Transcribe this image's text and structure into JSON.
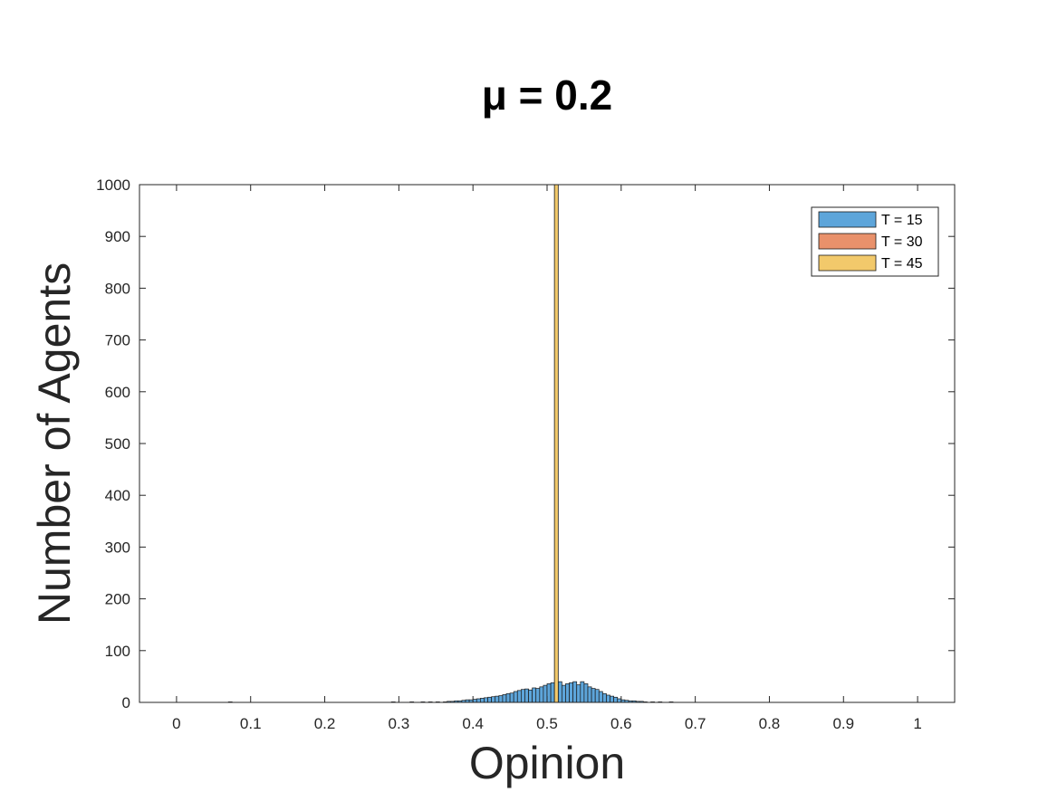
{
  "chart_data": {
    "type": "bar",
    "title": "μ = 0.2",
    "xlabel": "Opinion",
    "ylabel": "Number of Agents",
    "xlim": [
      -0.05,
      1.05
    ],
    "ylim": [
      0,
      1000
    ],
    "xticks": [
      0,
      0.1,
      0.2,
      0.3,
      0.4,
      0.5,
      0.6,
      0.7,
      0.8,
      0.9,
      1
    ],
    "xtick_labels": [
      "0",
      "0.1",
      "0.2",
      "0.3",
      "0.4",
      "0.5",
      "0.6",
      "0.7",
      "0.8",
      "0.9",
      "1"
    ],
    "yticks": [
      0,
      100,
      200,
      300,
      400,
      500,
      600,
      700,
      800,
      900,
      1000
    ],
    "ytick_labels": [
      "0",
      "100",
      "200",
      "300",
      "400",
      "500",
      "600",
      "700",
      "800",
      "900",
      "1000"
    ],
    "bin_width": 0.005,
    "grid": false,
    "legend_position": "top-right",
    "series": [
      {
        "name": "T = 15",
        "color": "#5DA5DA",
        "bins": [
          [
            0.07,
            1
          ],
          [
            0.29,
            1
          ],
          [
            0.315,
            1
          ],
          [
            0.33,
            1
          ],
          [
            0.34,
            1
          ],
          [
            0.35,
            1
          ],
          [
            0.36,
            1
          ],
          [
            0.365,
            2
          ],
          [
            0.37,
            2
          ],
          [
            0.375,
            3
          ],
          [
            0.38,
            3
          ],
          [
            0.385,
            4
          ],
          [
            0.39,
            5
          ],
          [
            0.395,
            5
          ],
          [
            0.4,
            6
          ],
          [
            0.405,
            7
          ],
          [
            0.41,
            8
          ],
          [
            0.415,
            9
          ],
          [
            0.42,
            10
          ],
          [
            0.425,
            11
          ],
          [
            0.43,
            12
          ],
          [
            0.435,
            13
          ],
          [
            0.44,
            15
          ],
          [
            0.445,
            17
          ],
          [
            0.45,
            18
          ],
          [
            0.455,
            21
          ],
          [
            0.46,
            23
          ],
          [
            0.465,
            25
          ],
          [
            0.47,
            26
          ],
          [
            0.475,
            24
          ],
          [
            0.48,
            28
          ],
          [
            0.485,
            27
          ],
          [
            0.49,
            30
          ],
          [
            0.495,
            33
          ],
          [
            0.5,
            36
          ],
          [
            0.505,
            38
          ],
          [
            0.515,
            40
          ],
          [
            0.52,
            33
          ],
          [
            0.525,
            36
          ],
          [
            0.53,
            38
          ],
          [
            0.535,
            40
          ],
          [
            0.54,
            34
          ],
          [
            0.545,
            40
          ],
          [
            0.55,
            36
          ],
          [
            0.555,
            30
          ],
          [
            0.56,
            27
          ],
          [
            0.565,
            25
          ],
          [
            0.57,
            21
          ],
          [
            0.575,
            17
          ],
          [
            0.58,
            14
          ],
          [
            0.585,
            12
          ],
          [
            0.59,
            10
          ],
          [
            0.595,
            7
          ],
          [
            0.6,
            5
          ],
          [
            0.605,
            4
          ],
          [
            0.61,
            3
          ],
          [
            0.615,
            3
          ],
          [
            0.62,
            2
          ],
          [
            0.625,
            2
          ],
          [
            0.63,
            1
          ],
          [
            0.64,
            1
          ],
          [
            0.65,
            1
          ],
          [
            0.665,
            1
          ]
        ]
      },
      {
        "name": "T = 30",
        "color": "#E9916B",
        "bins": [
          [
            0.51,
            1000
          ]
        ]
      },
      {
        "name": "T = 45",
        "color": "#F2C96B",
        "bins": [
          [
            0.51,
            1000
          ]
        ]
      }
    ]
  }
}
